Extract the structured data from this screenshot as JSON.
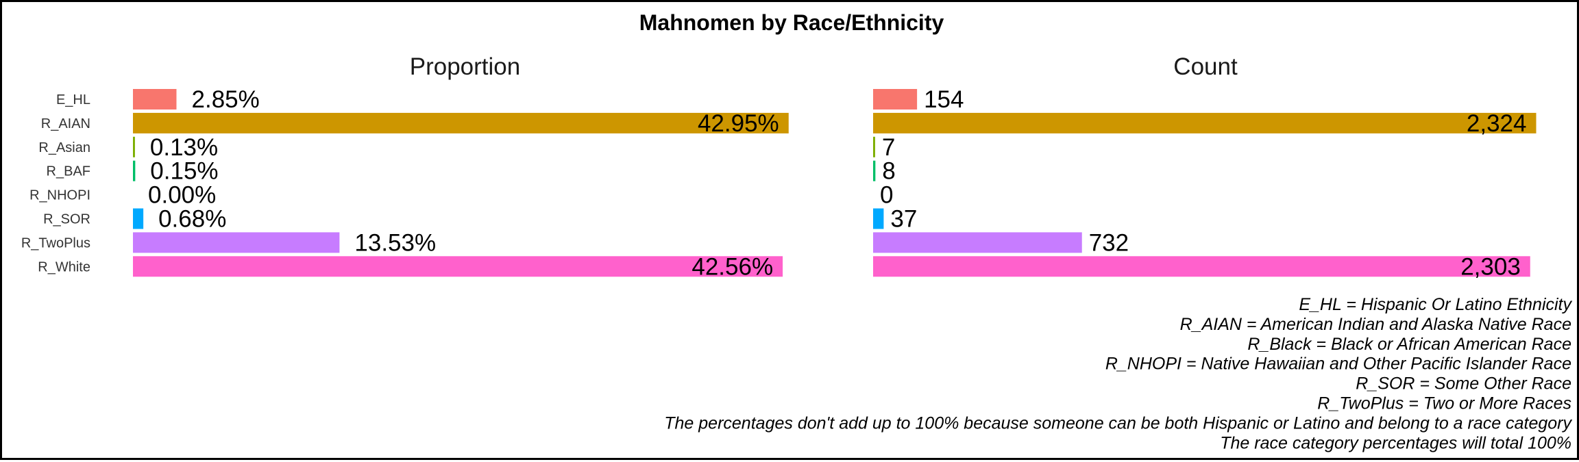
{
  "chart_data": {
    "type": "bar",
    "title": "Mahnomen by Race/Ethnicity",
    "orientation": "horizontal",
    "categories": [
      "E_HL",
      "R_AIAN",
      "R_Asian",
      "R_BAF",
      "R_NHOPI",
      "R_SOR",
      "R_TwoPlus",
      "R_White"
    ],
    "colors": [
      "#F8766D",
      "#CD9600",
      "#7CAE00",
      "#00BE67",
      "#00BFC4",
      "#00A9FF",
      "#C77CFF",
      "#FF61CC"
    ],
    "panels": [
      {
        "name": "Proportion",
        "values": [
          2.85,
          42.95,
          0.13,
          0.15,
          0.0,
          0.68,
          13.53,
          42.56
        ],
        "labels": [
          "2.85%",
          "42.95%",
          "0.13%",
          "0.15%",
          "0.00%",
          "0.68%",
          "13.53%",
          "42.56%"
        ],
        "xlim": [
          0,
          43.5
        ]
      },
      {
        "name": "Count",
        "values": [
          154,
          2324,
          7,
          8,
          0,
          37,
          732,
          2303
        ],
        "labels": [
          "154",
          "2,324",
          "7",
          "8",
          "0",
          "37",
          "732",
          "2,303"
        ],
        "xlim": [
          0,
          2330
        ]
      }
    ],
    "grid": false,
    "legend": "none"
  },
  "notes": [
    "E_HL = Hispanic Or Latino Ethnicity",
    "R_AIAN = American Indian and Alaska Native Race",
    "R_Black = Black or African American Race",
    "R_NHOPI = Native Hawaiian and Other Pacific Islander Race",
    "R_SOR = Some Other Race",
    "R_TwoPlus = Two or More Races",
    "The percentages don't add up to 100% because someone can be both Hispanic or Latino and belong to a race category",
    "The race category percentages will total 100%"
  ]
}
